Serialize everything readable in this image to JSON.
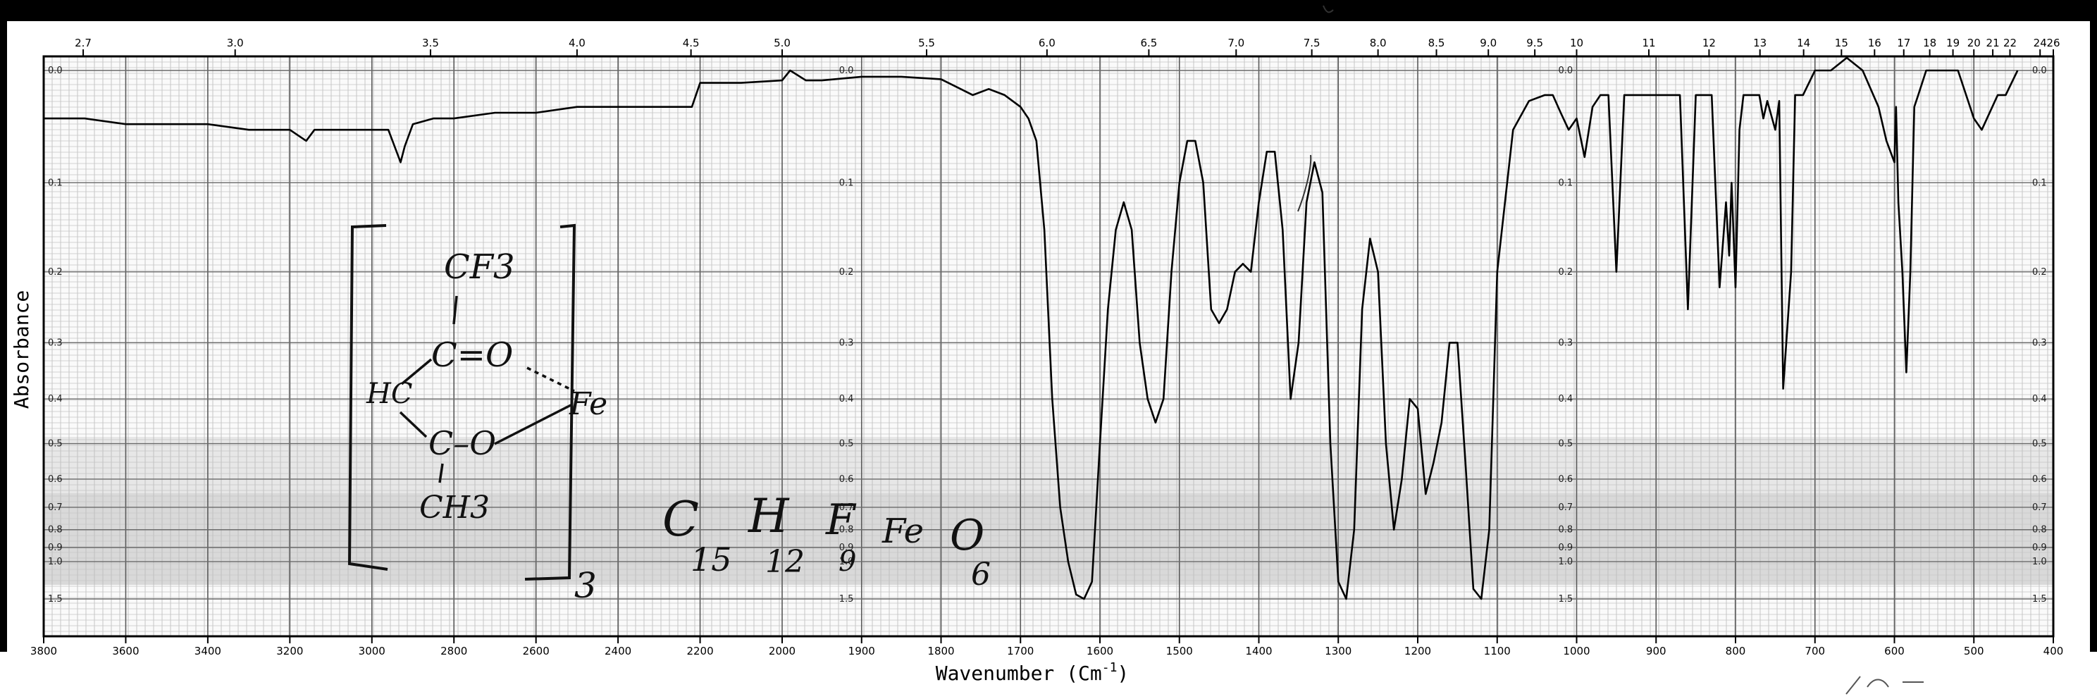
{
  "chart_data": {
    "type": "line",
    "title": "",
    "xlabel": "Wavenumber (Cm-1)",
    "xlabel_base": "Wavenumber (Cm",
    "xlabel_sup": "-1",
    "xlabel_close": ")",
    "ylabel": "Absorbance",
    "x_bottom_ticks": [
      "3800",
      "3600",
      "3400",
      "3200",
      "3000",
      "2800",
      "2600",
      "2400",
      "2200",
      "2000",
      "1900",
      "1800",
      "1700",
      "1600",
      "1500",
      "1400",
      "1300",
      "1200",
      "1100",
      "1000",
      "900",
      "800",
      "700",
      "600",
      "500",
      "400"
    ],
    "x_top_ticks": [
      "2.7",
      "3.0",
      "3.5",
      "4.0",
      "4.5",
      "5.0",
      "5.5",
      "6.0",
      "6.5",
      "7.0",
      "7.5",
      "8.0",
      "8.5",
      "9.0",
      "9.5",
      "10",
      "11",
      "12",
      "13",
      "14",
      "15",
      "16",
      "17",
      "18",
      "19",
      "20",
      "21",
      "22",
      "24",
      "26"
    ],
    "y_ticks": [
      "0.0",
      "0.1",
      "0.2",
      "0.3",
      "0.4",
      "0.5",
      "0.6",
      "0.7",
      "0.8",
      "0.9",
      "1.0",
      "1.5"
    ],
    "grid": true,
    "series": [
      {
        "x": [
          3800,
          3700,
          3600,
          3500,
          3400,
          3300,
          3200,
          3160,
          3140,
          3100,
          3000,
          2960,
          2930,
          2920,
          2900,
          2850,
          2800,
          2700,
          2600,
          2500,
          2400,
          2300,
          2250,
          2220,
          2200,
          2100,
          2000,
          1990,
          1970,
          1950,
          1900,
          1850,
          1800,
          1760,
          1740,
          1720,
          1700,
          1690,
          1680,
          1670,
          1660,
          1650,
          1640,
          1630,
          1620,
          1610,
          1600,
          1590,
          1580,
          1570,
          1560,
          1550,
          1540,
          1530,
          1520,
          1510,
          1500,
          1490,
          1480,
          1470,
          1460,
          1450,
          1440,
          1430,
          1420,
          1410,
          1400,
          1390,
          1380,
          1370,
          1360,
          1350,
          1340,
          1330,
          1320,
          1310,
          1300,
          1290,
          1280,
          1270,
          1260,
          1250,
          1240,
          1230,
          1220,
          1210,
          1200,
          1190,
          1180,
          1170,
          1160,
          1150,
          1140,
          1130,
          1120,
          1110,
          1100,
          1080,
          1060,
          1040,
          1030,
          1020,
          1010,
          1000,
          990,
          980,
          970,
          960,
          950,
          940,
          920,
          900,
          880,
          870,
          860,
          850,
          840,
          830,
          820,
          812,
          808,
          805,
          800,
          795,
          790,
          780,
          770,
          765,
          760,
          750,
          745,
          740,
          730,
          725,
          720,
          715,
          700,
          680,
          660,
          640,
          620,
          610,
          600,
          598,
          595,
          590,
          585,
          580,
          575,
          570,
          560,
          540,
          520,
          500,
          490,
          470,
          460,
          445
        ],
        "y": [
          0.04,
          0.04,
          0.045,
          0.045,
          0.045,
          0.05,
          0.05,
          0.06,
          0.05,
          0.05,
          0.05,
          0.05,
          0.08,
          0.065,
          0.045,
          0.04,
          0.04,
          0.035,
          0.035,
          0.03,
          0.03,
          0.03,
          0.03,
          0.03,
          0.01,
          0.01,
          0.008,
          0.0,
          0.008,
          0.008,
          0.005,
          0.005,
          0.007,
          0.02,
          0.015,
          0.02,
          0.03,
          0.04,
          0.06,
          0.15,
          0.4,
          0.7,
          1.0,
          1.4,
          1.5,
          1.2,
          0.5,
          0.25,
          0.15,
          0.12,
          0.15,
          0.3,
          0.4,
          0.45,
          0.4,
          0.2,
          0.1,
          0.06,
          0.06,
          0.1,
          0.25,
          0.27,
          0.25,
          0.2,
          0.19,
          0.2,
          0.12,
          0.07,
          0.07,
          0.15,
          0.4,
          0.3,
          0.12,
          0.08,
          0.11,
          0.5,
          1.2,
          1.5,
          0.8,
          0.25,
          0.16,
          0.2,
          0.5,
          0.8,
          0.6,
          0.4,
          0.42,
          0.65,
          0.55,
          0.45,
          0.3,
          0.3,
          0.55,
          1.3,
          1.5,
          0.8,
          0.2,
          0.05,
          0.025,
          0.02,
          0.02,
          0.035,
          0.05,
          0.04,
          0.075,
          0.03,
          0.02,
          0.02,
          0.2,
          0.02,
          0.02,
          0.02,
          0.02,
          0.02,
          0.25,
          0.02,
          0.02,
          0.02,
          0.22,
          0.12,
          0.18,
          0.1,
          0.22,
          0.05,
          0.02,
          0.02,
          0.02,
          0.04,
          0.025,
          0.05,
          0.025,
          0.38,
          0.2,
          0.02,
          0.02,
          0.02,
          0.0,
          0.0,
          -0.01,
          0.0,
          0.03,
          0.06,
          0.08,
          0.03,
          0.12,
          0.2,
          0.35,
          0.2,
          0.03,
          0.02,
          0.0,
          0.0,
          0.0,
          0.04,
          0.05,
          0.02,
          0.02,
          0.0
        ]
      }
    ],
    "annotations": {
      "structure": {
        "top": "CF3",
        "carbonyl": "C=O",
        "left_group": "HC",
        "ether": "C–O",
        "bottom": "CH3",
        "metal": "Fe",
        "subscript": "3"
      },
      "formula": [
        "C",
        "15",
        "H",
        "12",
        "F",
        "9",
        "Fe",
        "O",
        "6"
      ]
    }
  }
}
